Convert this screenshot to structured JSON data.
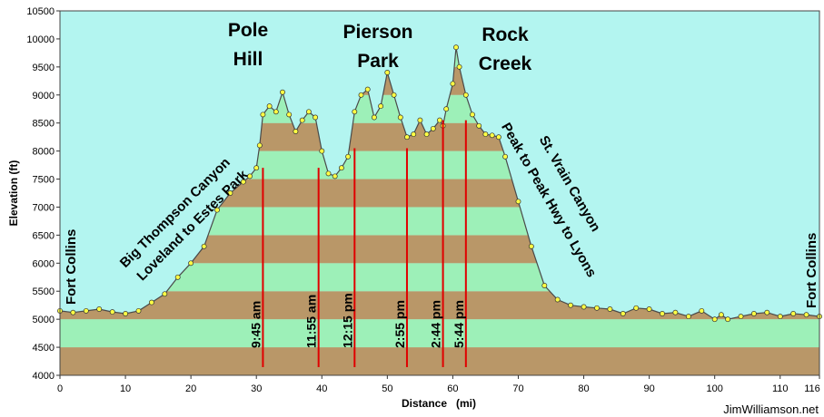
{
  "chart_data": {
    "type": "area",
    "xlabel": "Distance   (mi)",
    "ylabel": "Elevation (ft)",
    "xlim": [
      0,
      116
    ],
    "ylim": [
      4000,
      10500
    ],
    "xticks": [
      "0",
      "10",
      "20",
      "30",
      "40",
      "50",
      "60",
      "70",
      "80",
      "90",
      "100",
      "110",
      "116"
    ],
    "yticks": [
      "10500",
      "10000",
      "9500",
      "9000",
      "8500",
      "8000",
      "7500",
      "7000",
      "6500",
      "6000",
      "5500",
      "5000",
      "4500",
      "4000"
    ],
    "bands": {
      "green": "#9df0b8",
      "brown": "#b99768",
      "sky": "#b3f5f0"
    },
    "line_color": "#4a4a4a",
    "marker_color": "#ffff44",
    "series": [
      {
        "x": [
          0,
          2,
          4,
          6,
          8,
          10,
          12,
          14,
          16,
          18,
          20,
          22,
          24,
          26,
          28,
          29,
          30,
          30.5,
          31,
          32,
          33,
          34,
          35,
          36,
          37,
          38,
          39,
          40,
          41,
          42,
          43,
          44,
          45,
          46,
          47,
          48,
          49,
          50,
          51,
          52,
          53,
          54,
          55,
          56,
          57,
          58,
          58.5,
          59,
          60,
          60.5,
          61,
          62,
          63,
          64,
          65,
          66,
          67,
          68,
          70,
          72,
          74,
          76,
          78,
          80,
          82,
          84,
          86,
          88,
          90,
          92,
          94,
          96,
          98,
          100,
          101,
          102,
          104,
          106,
          108,
          110,
          112,
          114,
          116
        ],
        "y": [
          5150,
          5120,
          5150,
          5180,
          5130,
          5100,
          5150,
          5300,
          5450,
          5750,
          6000,
          6300,
          6950,
          7250,
          7450,
          7550,
          7700,
          8100,
          8650,
          8800,
          8700,
          9050,
          8650,
          8350,
          8550,
          8700,
          8600,
          8000,
          7600,
          7550,
          7700,
          7900,
          8700,
          9000,
          9100,
          8600,
          8800,
          9400,
          9000,
          8600,
          8250,
          8300,
          8550,
          8300,
          8400,
          8550,
          8450,
          8750,
          9200,
          9850,
          9500,
          9000,
          8650,
          8450,
          8300,
          8280,
          8250,
          7900,
          7100,
          6300,
          5600,
          5350,
          5250,
          5220,
          5200,
          5180,
          5100,
          5200,
          5180,
          5100,
          5120,
          5050,
          5150,
          5000,
          5080,
          5000,
          5050,
          5100,
          5120,
          5050,
          5100,
          5080,
          5050
        ]
      }
    ],
    "time_markers": [
      {
        "x": 31,
        "top": 7700,
        "label": "9:45 am"
      },
      {
        "x": 39.5,
        "top": 7700,
        "label": "11:55 am"
      },
      {
        "x": 45,
        "top": 8050,
        "label": "12:15 pm"
      },
      {
        "x": 53,
        "top": 8050,
        "label": "2:55 pm"
      },
      {
        "x": 58.5,
        "top": 8550,
        "label": "2:44 pm"
      },
      {
        "x": 62,
        "top": 8550,
        "label": "5:44 pm"
      }
    ],
    "annotations": {
      "peaks": [
        {
          "lines": [
            "Pole",
            "Hill"
          ]
        },
        {
          "lines": [
            "Pierson",
            "Park"
          ]
        },
        {
          "lines": [
            "Rock",
            "Creek"
          ]
        }
      ],
      "start": "Fort Collins",
      "end": "Fort Collins",
      "route_left": [
        "Big Thompson Canyon",
        "Loveland to Estes Park"
      ],
      "route_right": [
        "St. Vrain Canyon",
        "Peak to Peak Hwy to Lyons"
      ]
    }
  },
  "credit": "JimWilliamson.net"
}
